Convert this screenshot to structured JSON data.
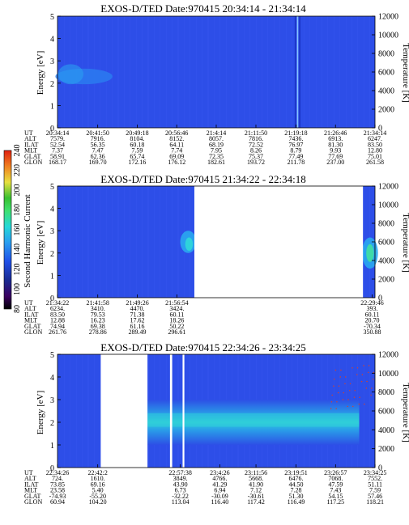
{
  "colorbar": {
    "label": "Second Harmonic Current",
    "ticks": [
      "80",
      "100",
      "120",
      "140",
      "160",
      "180",
      "200",
      "220",
      "240"
    ],
    "range": [
      80,
      240
    ],
    "colors": [
      "#000000",
      "#3a0060",
      "#1a2a90",
      "#2050e8",
      "#2a9ef0",
      "#25d8d8",
      "#40e070",
      "#38c030",
      "#e8e040",
      "#f08020",
      "#e02010"
    ]
  },
  "chart_data": [
    {
      "type": "heatmap",
      "title": "EXOS-D/TED   Date:970415   20:34:14 - 21:34:14",
      "ylabel": "Energy [eV]",
      "y2label": "Temperature [K]",
      "ylim": [
        0,
        5
      ],
      "y2lim": [
        0,
        12000
      ],
      "yticks": [
        "0",
        "1",
        "2",
        "3",
        "4",
        "5"
      ],
      "y2ticks": [
        "0",
        "2000",
        "4000",
        "6000",
        "8000",
        "10000",
        "12000"
      ],
      "xlim": [
        0,
        3600
      ],
      "orbit_labels": [
        "UT",
        "ALT",
        "ILAT",
        "MLT",
        "GLAT",
        "GLON"
      ],
      "orbit": [
        {
          "x": 0,
          "vals": [
            "20:34:14",
            "7579.",
            "52.54",
            "7.37",
            "58.91",
            "168.17"
          ]
        },
        {
          "x": 456,
          "vals": [
            "20:41:50",
            "7916.",
            "56.35",
            "7.47",
            "62.36",
            "169.70"
          ]
        },
        {
          "x": 904,
          "vals": [
            "20:49:18",
            "8104.",
            "60.18",
            "7.59",
            "65.74",
            "172.16"
          ]
        },
        {
          "x": 1352,
          "vals": [
            "20:56:46",
            "8152.",
            "64.11",
            "7.74",
            "69.09",
            "176.12"
          ]
        },
        {
          "x": 1800,
          "vals": [
            "21:4:14",
            "8057.",
            "68.19",
            "7.95",
            "72.35",
            "182.61"
          ]
        },
        {
          "x": 2250,
          "vals": [
            "21:11:50",
            "7816.",
            "72.52",
            "8.26",
            "75.37",
            "193.72"
          ]
        },
        {
          "x": 2704,
          "vals": [
            "21:19:18",
            "7436.",
            "76.97",
            "8.79",
            "77.49",
            "211.78"
          ]
        },
        {
          "x": 3152,
          "vals": [
            "21:26:46",
            "6913.",
            "81.30",
            "9.93",
            "77.69",
            "237.00"
          ]
        },
        {
          "x": 3600,
          "vals": [
            "21:34:14",
            "6247.",
            "83.50",
            "12.80",
            "75.01",
            "261.58"
          ]
        }
      ],
      "no_data": []
    },
    {
      "type": "heatmap",
      "title": "EXOS-D/TED   Date:970415   21:34:22 - 22:34:18",
      "ylabel": "Energy [eV]",
      "y2label": "Temperature [K]",
      "ylim": [
        0,
        5
      ],
      "y2lim": [
        0,
        12000
      ],
      "yticks": [
        "0",
        "1",
        "2",
        "3",
        "4",
        "5"
      ],
      "y2ticks": [
        "0",
        "2000",
        "4000",
        "6000",
        "8000",
        "10000",
        "12000"
      ],
      "xlim": [
        0,
        3596
      ],
      "orbit_labels": [
        "UT",
        "ALT",
        "ILAT",
        "MLT",
        "GLAT",
        "GLON"
      ],
      "orbit": [
        {
          "x": 0,
          "vals": [
            "21:34:22",
            "6234.",
            "83.50",
            "12.88",
            "74.94",
            "261.76"
          ]
        },
        {
          "x": 456,
          "vals": [
            "21:41:58",
            "3410.",
            "79.53",
            "16.23",
            "69.38",
            "278.86"
          ]
        },
        {
          "x": 904,
          "vals": [
            "21:49:26",
            "4470.",
            "71.38",
            "17.62",
            "61.16",
            "289.49"
          ]
        },
        {
          "x": 1352,
          "vals": [
            "21:56:54",
            "3424.",
            "60.11",
            "18.26",
            "50.22",
            "296.61"
          ]
        },
        {
          "x": 3564,
          "vals": [
            "22:29:46",
            "393.",
            "60.11",
            "20.70",
            "-70.34",
            "350.88"
          ]
        }
      ],
      "no_data": [
        [
          1550,
          3460
        ]
      ]
    },
    {
      "type": "heatmap",
      "title": "EXOS-D/TED   Date:970415   22:34:26 - 23:34:25",
      "ylabel": "Energy [eV]",
      "y2label": "Temperature [K]",
      "ylim": [
        0,
        5
      ],
      "y2lim": [
        0,
        12000
      ],
      "yticks": [
        "0",
        "1",
        "2",
        "3",
        "4",
        "5"
      ],
      "y2ticks": [
        "0",
        "2000",
        "4000",
        "6000",
        "8000",
        "10000",
        "12000"
      ],
      "xlim": [
        0,
        3599
      ],
      "orbit_labels": [
        "UT",
        "ALT",
        "ILAT",
        "MLT",
        "GLAT",
        "GLON"
      ],
      "orbit": [
        {
          "x": 0,
          "vals": [
            "22:34:26",
            "724.",
            "73.85",
            "23.58",
            "-74.93",
            "60.94"
          ]
        },
        {
          "x": 456,
          "vals": [
            "22:42:2",
            "1610.",
            "69.16",
            "5.40",
            "-55.20",
            "104.20"
          ]
        },
        {
          "x": 1392,
          "vals": [
            "22:57:38",
            "3849.",
            "43.90",
            "6.73",
            "-32.22",
            "113.04"
          ]
        },
        {
          "x": 1840,
          "vals": [
            "23:4:26",
            "4766.",
            "41.29",
            "6.94",
            "-30.09",
            "116.40"
          ]
        },
        {
          "x": 2250,
          "vals": [
            "23:11:56",
            "5668.",
            "41.90",
            "7.12",
            "-30.61",
            "117.42"
          ]
        },
        {
          "x": 2704,
          "vals": [
            "23:19:51",
            "6476.",
            "44.50",
            "7.28",
            "51.30",
            "116.49"
          ]
        },
        {
          "x": 3152,
          "vals": [
            "23:26:57",
            "7068.",
            "47.59",
            "7.43",
            "54.15",
            "117.25"
          ]
        },
        {
          "x": 3600,
          "vals": [
            "23:34:25",
            "7552.",
            "51.11",
            "7.59",
            "57.46",
            "118.21"
          ]
        }
      ],
      "no_data": [
        [
          490,
          1020
        ],
        [
          1275,
          1300
        ],
        [
          1418,
          1438
        ]
      ]
    }
  ]
}
